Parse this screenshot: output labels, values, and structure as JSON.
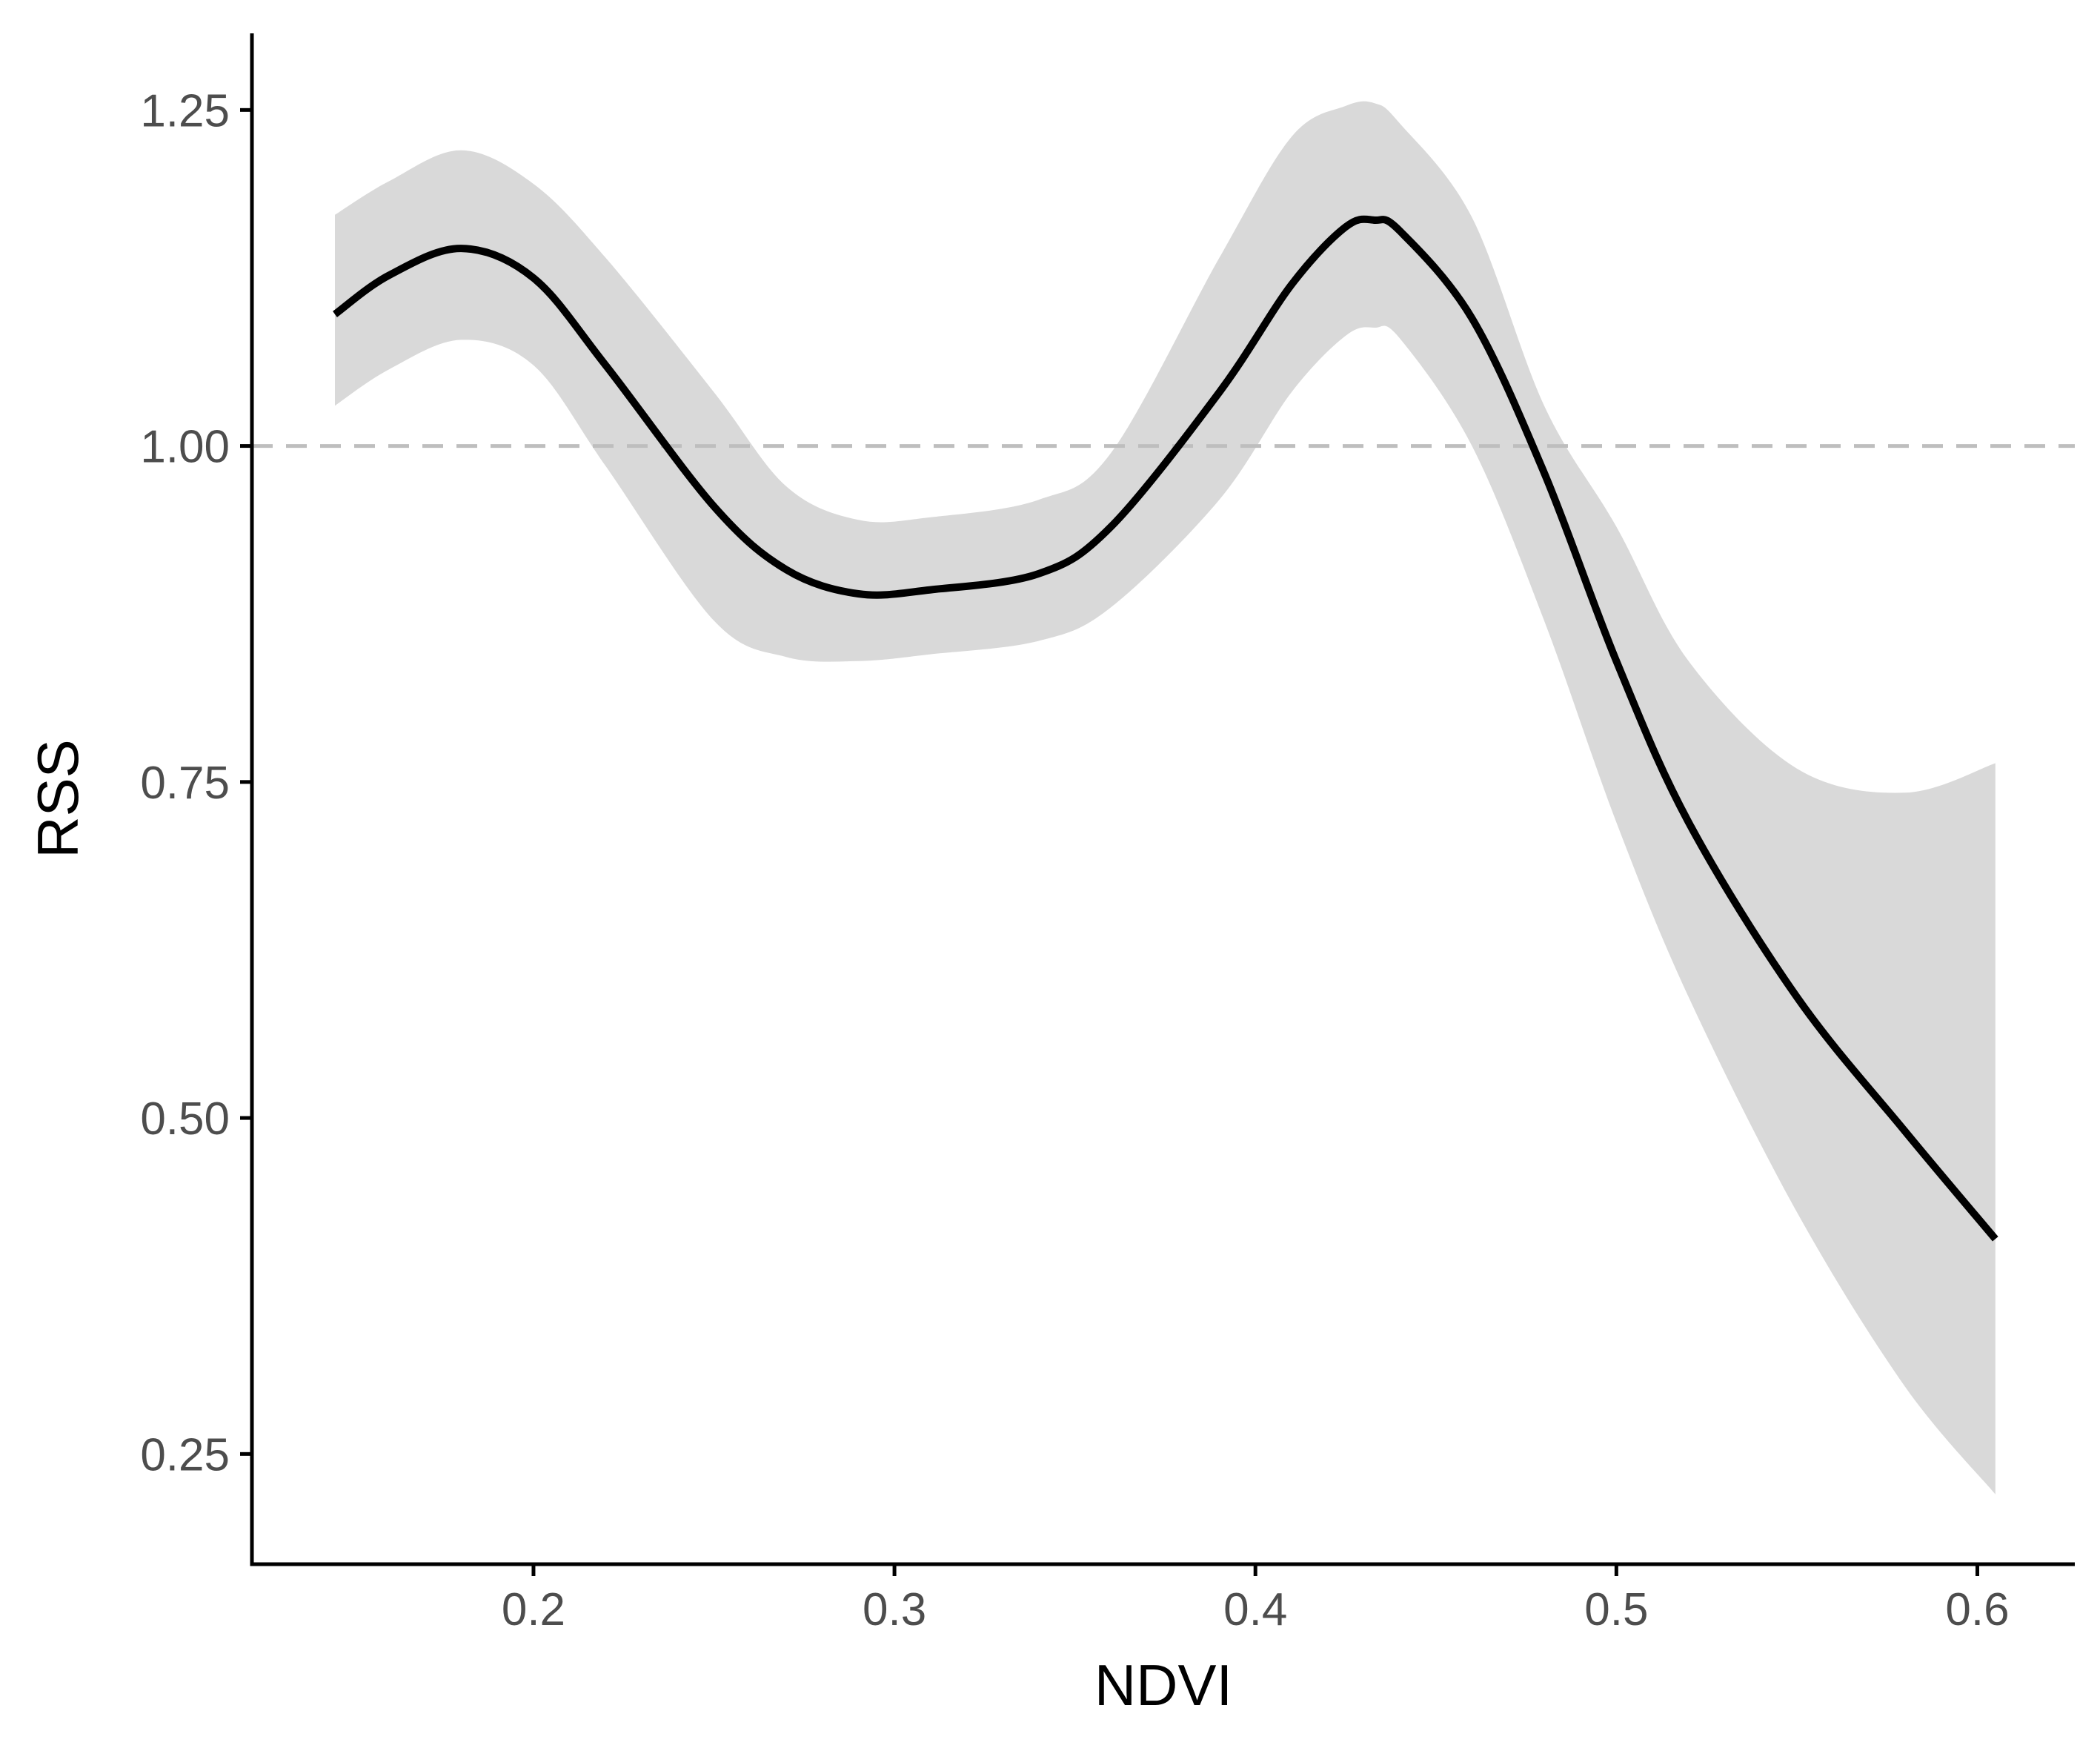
{
  "chart_data": {
    "type": "line",
    "title": "",
    "xlabel": "NDVI",
    "ylabel": "RSS",
    "xlim": [
      0.122,
      0.627
    ],
    "ylim": [
      0.168,
      1.307
    ],
    "x_ticks": [
      0.2,
      0.3,
      0.4,
      0.5,
      0.6
    ],
    "x_tick_labels": [
      "0.2",
      "0.3",
      "0.4",
      "0.5",
      "0.6"
    ],
    "y_ticks": [
      0.25,
      0.5,
      0.75,
      1.0,
      1.25
    ],
    "y_tick_labels": [
      "0.25",
      "0.50",
      "0.75",
      "1.00",
      "1.25"
    ],
    "grid": false,
    "legend": "none",
    "reference_line": {
      "y": 1.0,
      "style": "dashed",
      "color": "#bebebe"
    },
    "series": [
      {
        "x": [
          0.145,
          0.16,
          0.18,
          0.2,
          0.22,
          0.25,
          0.27,
          0.29,
          0.31,
          0.34,
          0.36,
          0.39,
          0.41,
          0.425,
          0.433,
          0.44,
          0.46,
          0.48,
          0.5,
          0.52,
          0.55,
          0.58,
          0.605
        ],
        "y": [
          1.098,
          1.127,
          1.147,
          1.125,
          1.06,
          0.955,
          0.908,
          0.89,
          0.893,
          0.905,
          0.94,
          1.04,
          1.12,
          1.163,
          1.168,
          1.16,
          1.095,
          0.98,
          0.84,
          0.72,
          0.59,
          0.49,
          0.41
        ],
        "lower": [
          1.03,
          1.057,
          1.079,
          1.06,
          0.985,
          0.87,
          0.843,
          0.84,
          0.845,
          0.855,
          0.88,
          0.96,
          1.04,
          1.082,
          1.088,
          1.08,
          1.0,
          0.87,
          0.72,
          0.59,
          0.43,
          0.3,
          0.22
        ],
        "upper": [
          1.172,
          1.197,
          1.22,
          1.195,
          1.14,
          1.04,
          0.97,
          0.945,
          0.947,
          0.96,
          0.995,
          1.14,
          1.23,
          1.253,
          1.255,
          1.24,
          1.17,
          1.03,
          0.94,
          0.84,
          0.76,
          0.742,
          0.764
        ],
        "color": "#000000",
        "ribbon_color": "#d9d9d9"
      }
    ]
  }
}
